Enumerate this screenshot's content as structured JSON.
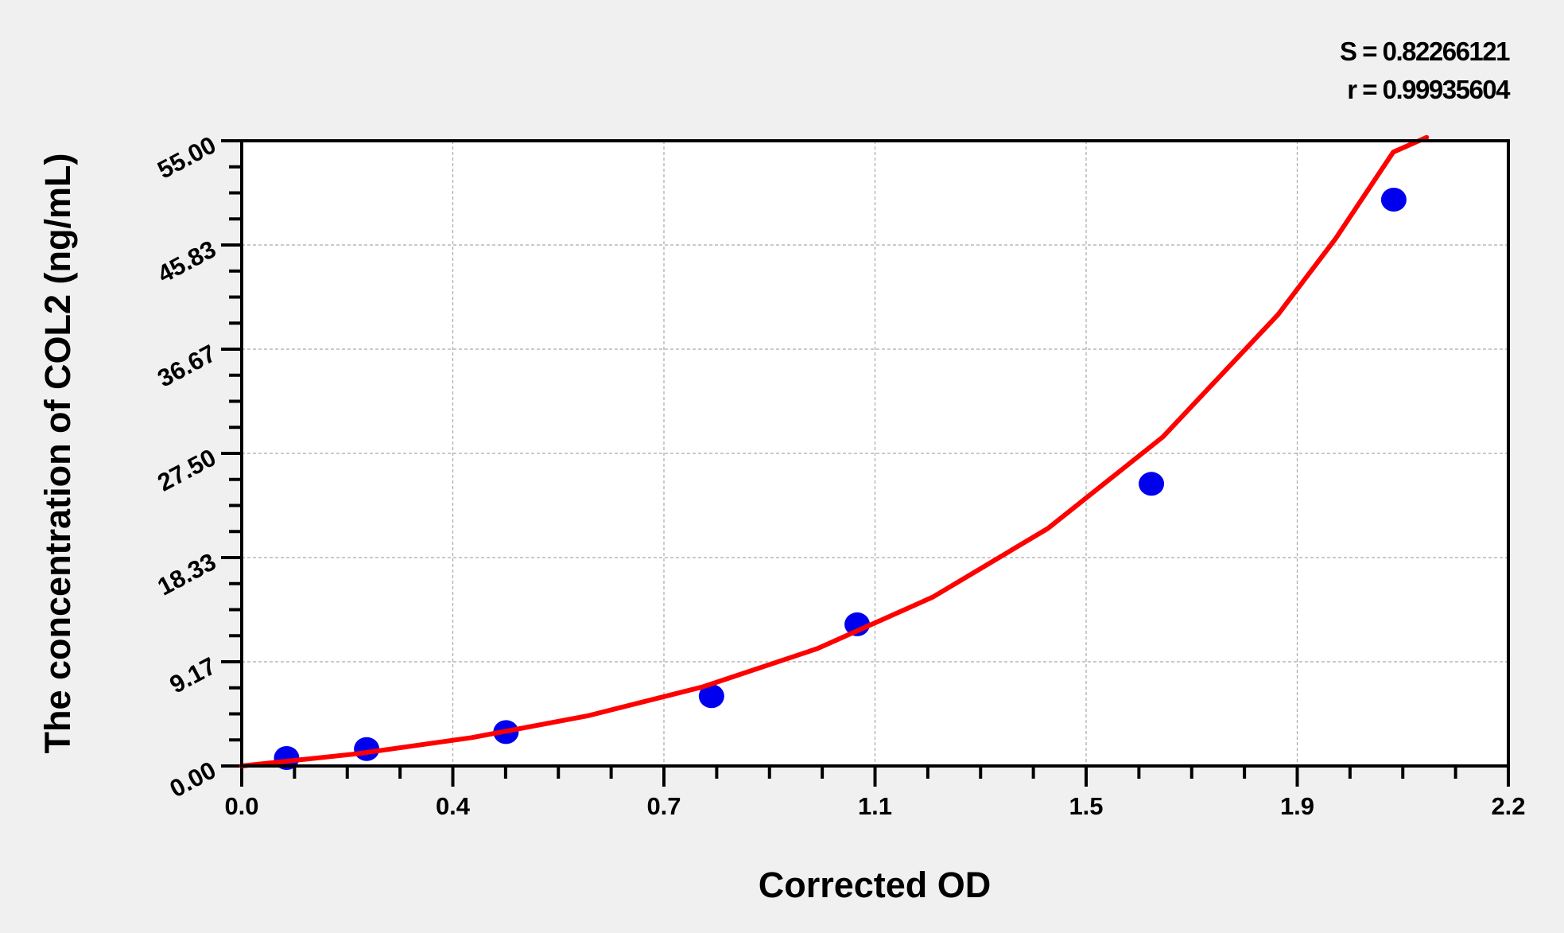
{
  "chart_data": {
    "type": "scatter",
    "title": "",
    "xlabel": "Corrected OD",
    "ylabel": "The concentration of COL2 (ng/mL)",
    "xlim": [
      0,
      2.2
    ],
    "ylim": [
      0,
      55
    ],
    "x_ticks": [
      "0.0",
      "0.4",
      "0.7",
      "1.1",
      "1.5",
      "1.9",
      "2.2"
    ],
    "y_ticks": [
      "0.00",
      "9.17",
      "18.33",
      "27.50",
      "36.67",
      "45.83",
      "55.00"
    ],
    "grid": true,
    "annotations": [
      "S = 0.82266121",
      "r = 0.99935604"
    ],
    "points": {
      "color": "#0000ee",
      "x": [
        0.078,
        0.217,
        0.459,
        0.816,
        1.069,
        1.58,
        2.001
      ],
      "y": [
        0.7,
        1.49,
        2.98,
        6.14,
        12.46,
        24.82,
        49.82
      ]
    },
    "fit_curve": {
      "color": "#ff0000",
      "x": [
        0,
        0.2,
        0.4,
        0.6,
        0.8,
        1.0,
        1.2,
        1.4,
        1.6,
        1.8,
        1.9,
        2.0,
        2.058
      ],
      "y": [
        0,
        1.07,
        2.5,
        4.4,
        6.95,
        10.33,
        14.85,
        20.89,
        28.95,
        39.72,
        46.4,
        54.0,
        55.3
      ]
    }
  }
}
